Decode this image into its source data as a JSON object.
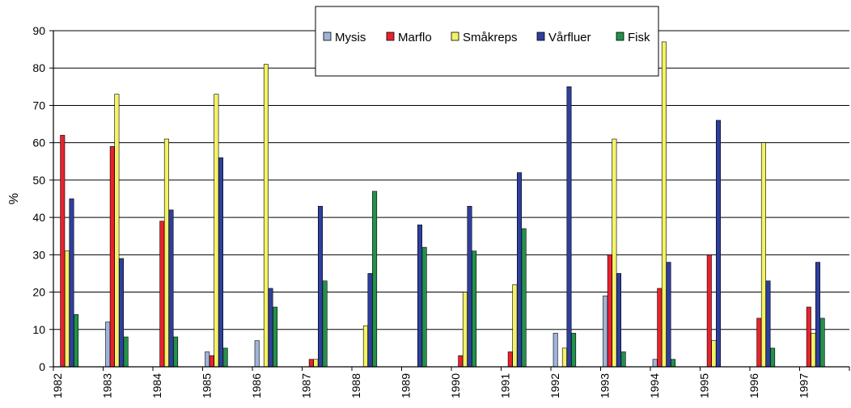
{
  "chart_data": {
    "type": "bar",
    "title": "",
    "xlabel": "",
    "ylabel": "%",
    "ylim": [
      0,
      90
    ],
    "yticks": [
      0,
      10,
      20,
      30,
      40,
      50,
      60,
      70,
      80,
      90
    ],
    "grid": "horizontal",
    "legend_position": "top-center",
    "categories": [
      "1982",
      "1983",
      "1984",
      "1985",
      "1986",
      "1987",
      "1988",
      "1989",
      "1990",
      "1991",
      "1992",
      "1993",
      "1994",
      "1995",
      "1996",
      "1997"
    ],
    "series": [
      {
        "name": "Mysis",
        "color": "#9fb4da",
        "values": [
          0,
          12,
          0,
          4,
          7,
          0,
          0,
          0,
          0,
          0,
          9,
          19,
          2,
          0,
          0,
          0
        ]
      },
      {
        "name": "Marflo",
        "color": "#e8222d",
        "values": [
          62,
          59,
          39,
          3,
          0,
          2,
          0,
          0,
          3,
          4,
          0,
          30,
          21,
          30,
          13,
          16
        ]
      },
      {
        "name": "Småkreps",
        "color": "#f4f266",
        "values": [
          31,
          73,
          61,
          73,
          81,
          2,
          11,
          0,
          20,
          22,
          5,
          61,
          87,
          7,
          60,
          9
        ]
      },
      {
        "name": "Vårfluer",
        "color": "#2f3f9e",
        "values": [
          45,
          29,
          42,
          56,
          21,
          43,
          25,
          38,
          43,
          52,
          75,
          25,
          28,
          66,
          23,
          28
        ]
      },
      {
        "name": "Fisk",
        "color": "#23914a",
        "values": [
          14,
          8,
          8,
          5,
          16,
          23,
          47,
          32,
          31,
          37,
          9,
          4,
          2,
          0,
          5,
          13
        ]
      }
    ]
  }
}
